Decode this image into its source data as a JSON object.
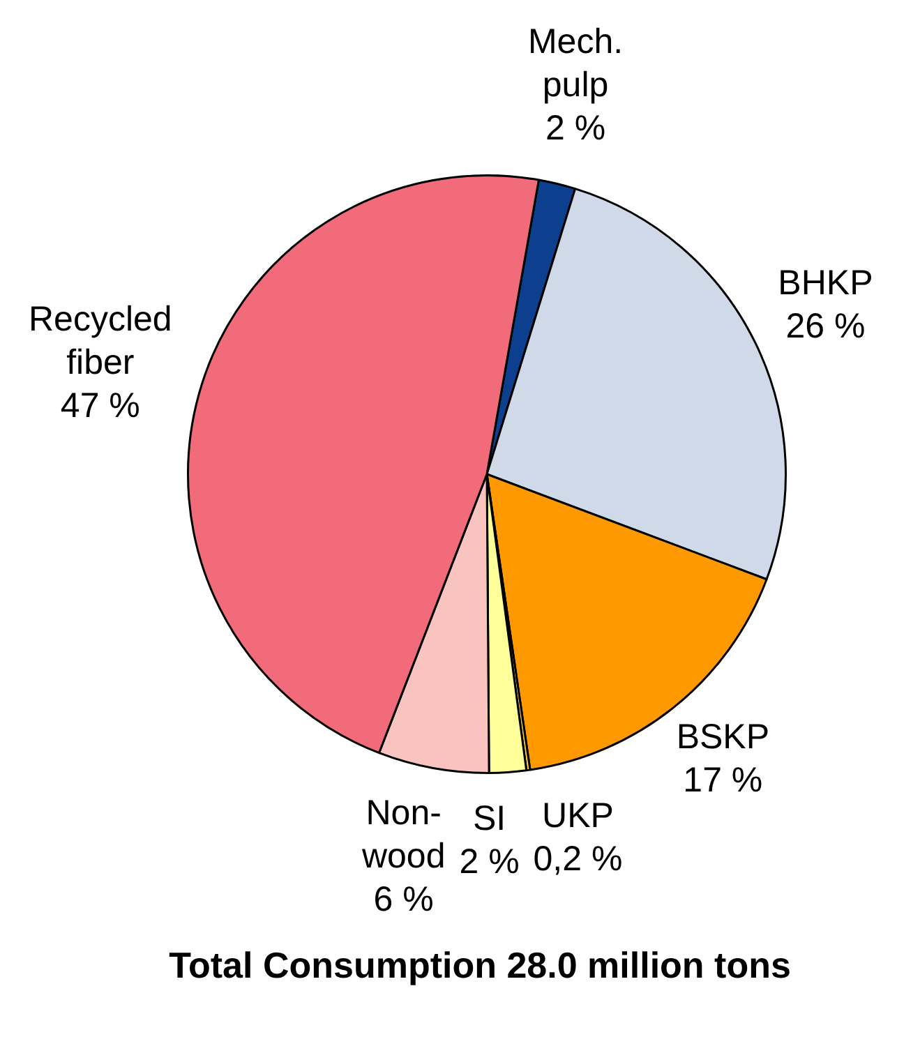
{
  "chart_data": {
    "type": "pie",
    "title": "Total Consumption 28.0 million tons",
    "categories": [
      "Mech. pulp",
      "BHKP",
      "BSKP",
      "UKP",
      "SI",
      "Non-wood",
      "Recycled fiber"
    ],
    "values": [
      2,
      26,
      17,
      0.2,
      2,
      6,
      47
    ],
    "value_labels": [
      "2 %",
      "26 %",
      "17 %",
      "0,2 %",
      "2 %",
      "6 %",
      "47 %"
    ],
    "colors": [
      "#0d3f8f",
      "#cfd9e8",
      "#ff9900",
      "#ffcc33",
      "#ffff99",
      "#f9c3c0",
      "#f16b7a"
    ],
    "legend": false
  }
}
